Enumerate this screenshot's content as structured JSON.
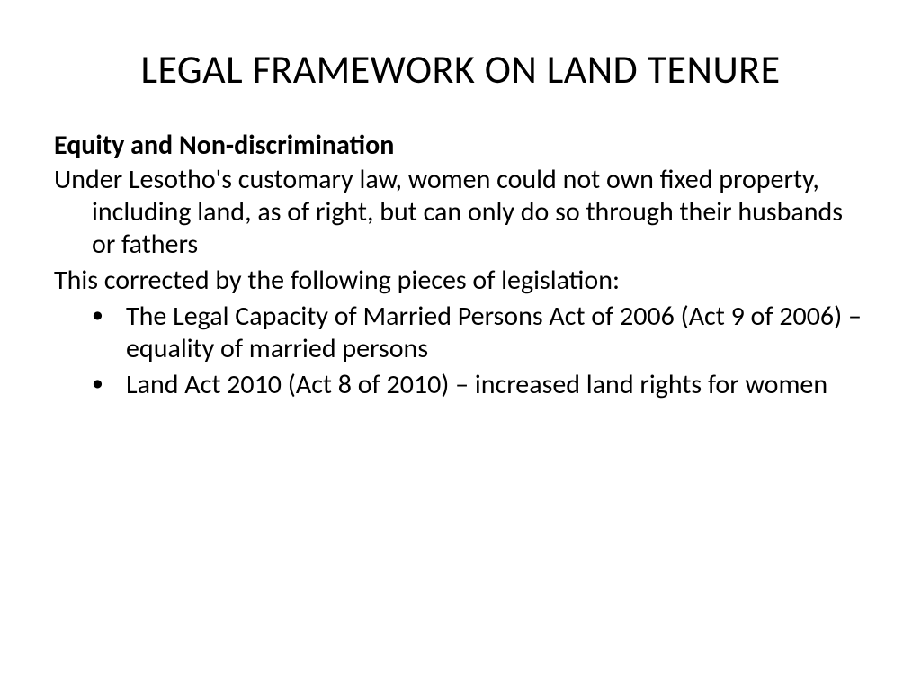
{
  "slide": {
    "title": "LEGAL FRAMEWORK ON LAND TENURE",
    "subheading": "Equity and Non-discrimination",
    "para1": "Under Lesotho's customary law, women could not own fixed property, including land, as of right, but can only do so through their husbands or fathers",
    "para2": "This corrected by the following pieces of legislation:",
    "bullets": [
      "The Legal Capacity of Married Persons Act of 2006 (Act 9 of 2006) – equality of married persons",
      "Land Act 2010 (Act 8 of 2010) – increased land rights for women"
    ]
  },
  "style": {
    "background_color": "#ffffff",
    "text_color": "#000000",
    "title_fontsize": 44,
    "body_fontsize": 30,
    "font_family": "Calibri"
  }
}
